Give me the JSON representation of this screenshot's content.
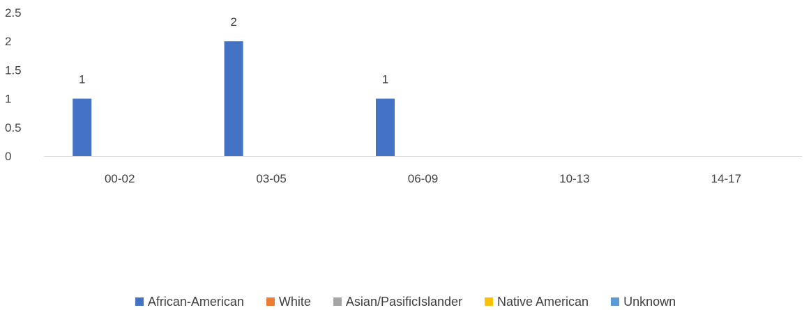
{
  "chart_data": {
    "type": "bar",
    "categories": [
      "00-02",
      "03-05",
      "06-09",
      "10-13",
      "14-17"
    ],
    "series": [
      {
        "name": "African-American",
        "color": "#4472C4",
        "values": [
          1,
          2,
          1,
          0,
          0
        ],
        "labels": [
          "1",
          "2",
          "1",
          "",
          ""
        ]
      },
      {
        "name": "White",
        "color": "#ED7D31",
        "values": [
          0,
          0,
          0,
          0,
          0
        ],
        "labels": [
          "",
          "",
          "",
          "",
          ""
        ]
      },
      {
        "name": "Asian/PasificIslander",
        "color": "#A5A5A5",
        "values": [
          0,
          0,
          0,
          0,
          0
        ],
        "labels": [
          "",
          "",
          "",
          "",
          ""
        ]
      },
      {
        "name": "Native American",
        "color": "#FFC000",
        "values": [
          0,
          0,
          0,
          0,
          0
        ],
        "labels": [
          "",
          "",
          "",
          "",
          ""
        ]
      },
      {
        "name": "Unknown",
        "color": "#5B9BD5",
        "values": [
          0,
          0,
          0,
          0,
          0
        ],
        "labels": [
          "",
          "",
          "",
          "",
          ""
        ]
      }
    ],
    "yticks": [
      "0",
      "0.5",
      "1",
      "1.5",
      "2",
      "2.5"
    ],
    "ylim": [
      0,
      2.5
    ],
    "grid": false,
    "legend_position": "bottom"
  }
}
